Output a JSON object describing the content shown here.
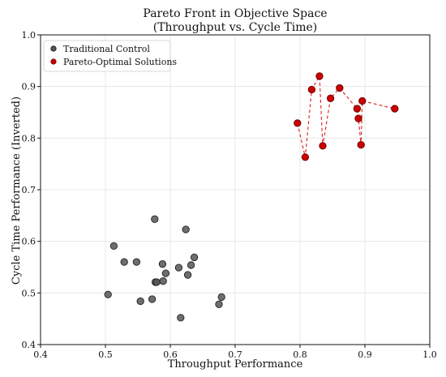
{
  "chart_data": {
    "type": "scatter",
    "title": [
      "Pareto Front in Objective Space",
      "(Throughput vs. Cycle Time)"
    ],
    "xlabel": "Throughput Performance",
    "ylabel": "Cycle Time Performance (Inverted)",
    "xlim": [
      0.4,
      1.0
    ],
    "ylim": [
      0.4,
      1.0
    ],
    "xticks": [
      "0.4",
      "0.5",
      "0.6",
      "0.7",
      "0.8",
      "0.9",
      "1.0"
    ],
    "yticks": [
      "0.4",
      "0.5",
      "0.6",
      "0.7",
      "0.8",
      "0.9",
      "1.0"
    ],
    "grid": true,
    "legend_position": "top-left",
    "series": [
      {
        "name": "Traditional Control",
        "color": "#555555",
        "connected": false,
        "points": [
          [
            0.504,
            0.497
          ],
          [
            0.513,
            0.591
          ],
          [
            0.529,
            0.56
          ],
          [
            0.548,
            0.56
          ],
          [
            0.554,
            0.484
          ],
          [
            0.572,
            0.488
          ],
          [
            0.576,
            0.643
          ],
          [
            0.577,
            0.521
          ],
          [
            0.579,
            0.521
          ],
          [
            0.588,
            0.556
          ],
          [
            0.589,
            0.523
          ],
          [
            0.593,
            0.538
          ],
          [
            0.613,
            0.549
          ],
          [
            0.616,
            0.452
          ],
          [
            0.624,
            0.623
          ],
          [
            0.627,
            0.535
          ],
          [
            0.632,
            0.554
          ],
          [
            0.637,
            0.569
          ],
          [
            0.675,
            0.478
          ],
          [
            0.679,
            0.492
          ]
        ]
      },
      {
        "name": "Pareto-Optimal Solutions",
        "color": "#cc0000",
        "connected": true,
        "points": [
          [
            0.796,
            0.829
          ],
          [
            0.808,
            0.763
          ],
          [
            0.818,
            0.894
          ],
          [
            0.83,
            0.92
          ],
          [
            0.835,
            0.785
          ],
          [
            0.847,
            0.877
          ],
          [
            0.861,
            0.897
          ],
          [
            0.888,
            0.857
          ],
          [
            0.89,
            0.838
          ],
          [
            0.894,
            0.787
          ],
          [
            0.896,
            0.872
          ],
          [
            0.946,
            0.857
          ]
        ]
      }
    ]
  }
}
